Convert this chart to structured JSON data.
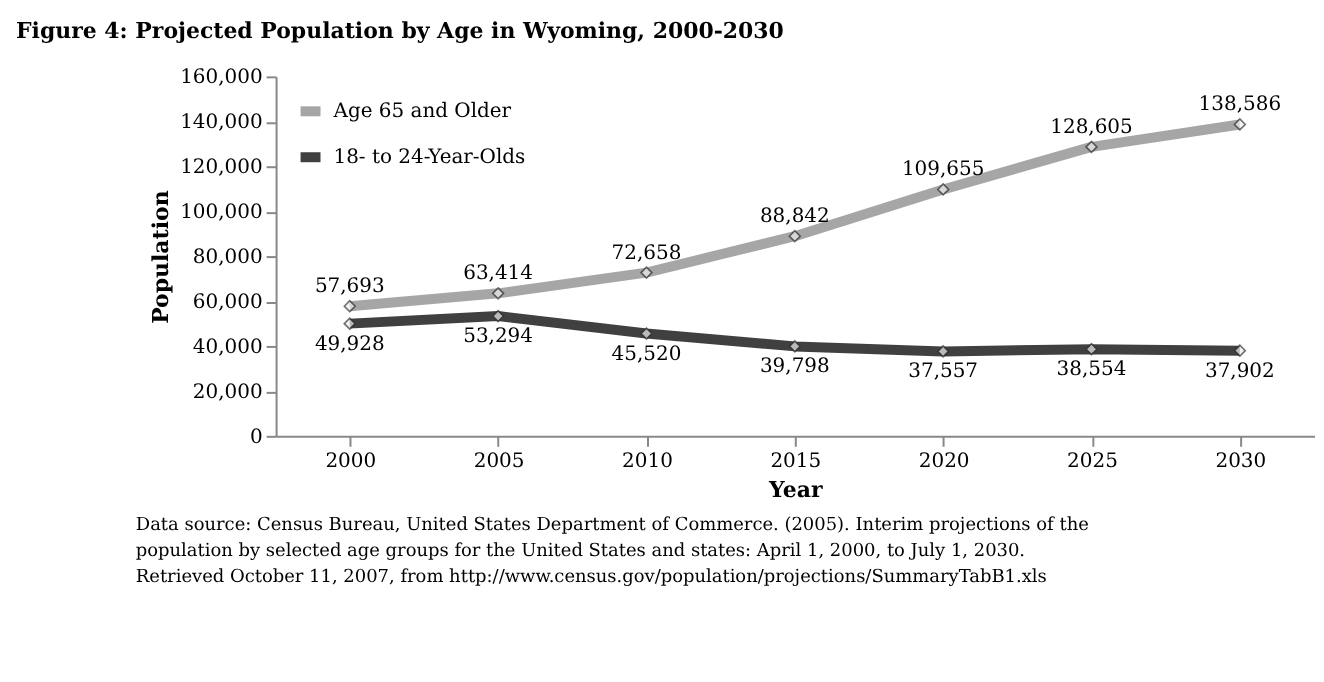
{
  "chart_data": {
    "type": "line",
    "title": "Figure 4: Projected Population by Age in Wyoming, 2000-2030",
    "xlabel": "Year",
    "ylabel": "Population",
    "categories": [
      "2000",
      "2005",
      "2010",
      "2015",
      "2020",
      "2025",
      "2030"
    ],
    "series": [
      {
        "name": "Age 65 and Older",
        "color": "#a6a6a6",
        "values": [
          57693,
          63414,
          72658,
          88842,
          109655,
          128605,
          138586
        ],
        "value_labels": [
          "57,693",
          "63,414",
          "72,658",
          "88,842",
          "109,655",
          "128,605",
          "138,586"
        ]
      },
      {
        "name": "18- to 24-Year-Olds",
        "color": "#404040",
        "values": [
          49928,
          53294,
          45520,
          39798,
          37557,
          38554,
          37902
        ],
        "value_labels": [
          "49,928",
          "53,294",
          "45,520",
          "39,798",
          "37,557",
          "38,554",
          "37,902"
        ]
      }
    ],
    "ylim": [
      0,
      160000
    ],
    "yticks": [
      0,
      {
        "value": 20000,
        "label": "20,000"
      },
      {
        "value": 40000,
        "label": "40,000"
      },
      {
        "value": 60000,
        "label": "60,000"
      },
      {
        "value": 80000,
        "label": "80,000"
      },
      {
        "value": 100000,
        "label": "100,000"
      },
      {
        "value": 120000,
        "label": "120,000"
      },
      {
        "value": 140000,
        "label": "140,000"
      },
      {
        "value": 160000,
        "label": "160,000"
      }
    ],
    "grid": false,
    "legend": "top left",
    "marker": "diamond",
    "annotations": [
      "Data source: Census Bureau, United States Department of Commerce. (2005). Interim projections of the population by selected age groups for the United States and states: April 1, 2000, to July 1, 2030. Retrieved October 11, 2007, from http://www.census.gov/population/projections/SummaryTabB1.xls"
    ]
  }
}
